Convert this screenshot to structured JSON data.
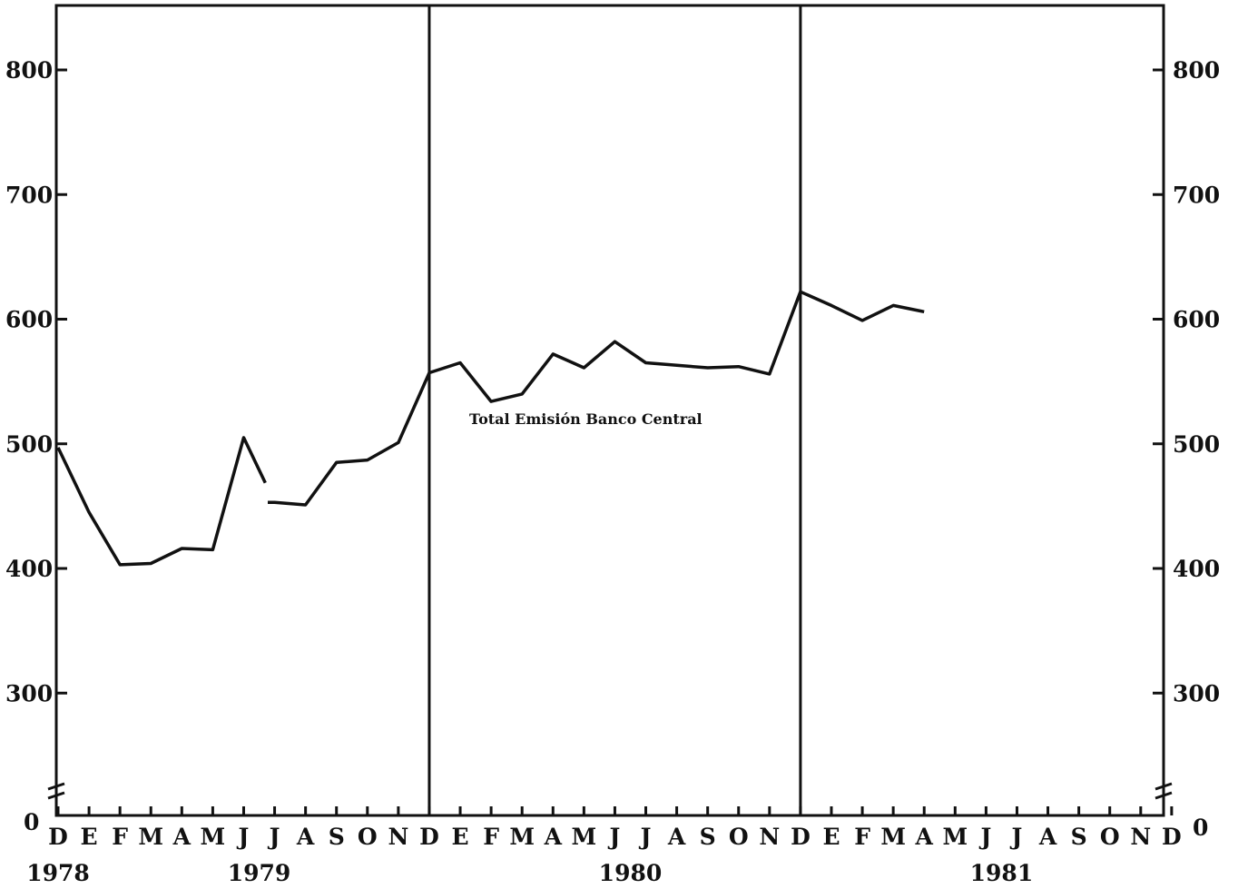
{
  "chart_data": {
    "type": "line",
    "y_ticks": [
      {
        "value": 800,
        "label": "800"
      },
      {
        "value": 700,
        "label": "700"
      },
      {
        "value": 600,
        "label": "600"
      },
      {
        "value": 500,
        "label": "500"
      },
      {
        "value": 400,
        "label": "400"
      },
      {
        "value": 300,
        "label": "300"
      }
    ],
    "y_zero_label": "0",
    "y_break": true,
    "ylim": [
      250,
      850
    ],
    "months": [
      "D",
      "E",
      "F",
      "M",
      "A",
      "M",
      "J",
      "J",
      "A",
      "S",
      "O",
      "N",
      "D",
      "E",
      "F",
      "M",
      "A",
      "M",
      "J",
      "J",
      "A",
      "S",
      "O",
      "N",
      "D",
      "E",
      "F",
      "M",
      "A",
      "M",
      "J",
      "J",
      "A",
      "S",
      "O",
      "N",
      "D"
    ],
    "years": [
      {
        "label": "1978",
        "month_index": 0
      },
      {
        "label": "1979",
        "month_index": 6.5
      },
      {
        "label": "1980",
        "month_index": 18.5
      },
      {
        "label": "1981",
        "month_index": 30.5
      }
    ],
    "year_dividers": [
      12,
      24
    ],
    "series": [
      {
        "name": "Total Emisión Banco Central",
        "x": [
          0,
          1,
          2,
          3,
          4,
          5,
          6,
          7,
          8,
          9,
          10,
          11,
          12,
          13,
          14,
          15,
          16,
          17,
          18,
          19,
          20,
          21,
          22,
          23,
          24,
          25,
          26,
          27,
          28
        ],
        "values": [
          497,
          445,
          403,
          404,
          416,
          415,
          505,
          453,
          451,
          485,
          487,
          501,
          557,
          565,
          534,
          540,
          572,
          561,
          582,
          565,
          563,
          561,
          562,
          556,
          622,
          611,
          599,
          611,
          606
        ],
        "gaps_after_index": [
          6
        ]
      }
    ],
    "grid": false
  }
}
